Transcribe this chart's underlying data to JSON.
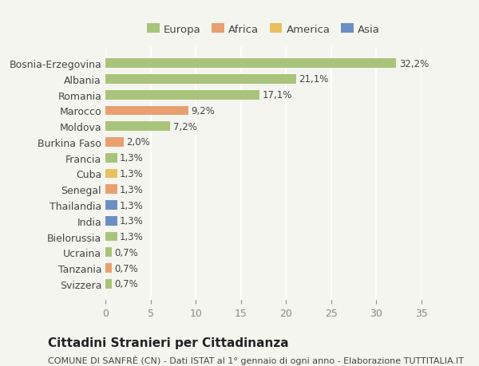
{
  "title": "Cittadini Stranieri per Cittadinanza",
  "subtitle": "COMUNE DI SANFRÈ (CN) - Dati ISTAT al 1° gennaio di ogni anno - Elaborazione TUTTITALIA.IT",
  "categories": [
    "Svizzera",
    "Tanzania",
    "Ucraina",
    "Bielorussia",
    "India",
    "Thailandia",
    "Senegal",
    "Cuba",
    "Francia",
    "Burkina Faso",
    "Moldova",
    "Marocco",
    "Romania",
    "Albania",
    "Bosnia-Erzegovina"
  ],
  "values": [
    0.7,
    0.7,
    0.7,
    1.3,
    1.3,
    1.3,
    1.3,
    1.3,
    1.3,
    2.0,
    7.2,
    9.2,
    17.1,
    21.1,
    32.2
  ],
  "bar_colors": [
    "#a8c47a",
    "#e8a070",
    "#a8c47a",
    "#a8c47a",
    "#6b8fc2",
    "#6b8fc2",
    "#e8a070",
    "#e8c060",
    "#a8c47a",
    "#e8a070",
    "#a8c47a",
    "#e8a070",
    "#a8c47a",
    "#a8c47a",
    "#a8c47a"
  ],
  "labels": [
    "0,7%",
    "0,7%",
    "0,7%",
    "1,3%",
    "1,3%",
    "1,3%",
    "1,3%",
    "1,3%",
    "1,3%",
    "2,0%",
    "7,2%",
    "9,2%",
    "17,1%",
    "21,1%",
    "32,2%"
  ],
  "legend": {
    "Europa": "#a8c47a",
    "Africa": "#e8a070",
    "America": "#e8c060",
    "Asia": "#6b8fc2"
  },
  "xlim": [
    0,
    35
  ],
  "xticks": [
    0,
    5,
    10,
    15,
    20,
    25,
    30,
    35
  ],
  "background_color": "#f5f5f0",
  "bar_height": 0.6,
  "title_fontsize": 11,
  "subtitle_fontsize": 8,
  "tick_fontsize": 9,
  "label_fontsize": 8.5
}
